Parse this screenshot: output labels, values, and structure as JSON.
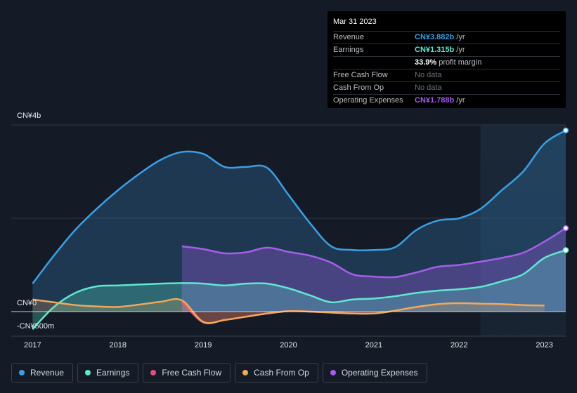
{
  "tooltip": {
    "date": "Mar 31 2023",
    "rows": [
      {
        "label": "Revenue",
        "value": "CN¥3.882b",
        "unit": "/yr",
        "color": "#3b9fe6"
      },
      {
        "label": "Earnings",
        "value": "CN¥1.315b",
        "unit": "/yr",
        "color": "#5ee8d0"
      },
      {
        "label": "",
        "value": "33.9%",
        "unit": "profit margin",
        "color": "#ffffff"
      },
      {
        "label": "Free Cash Flow",
        "value": "No data",
        "unit": "",
        "color": ""
      },
      {
        "label": "Cash From Op",
        "value": "No data",
        "unit": "",
        "color": ""
      },
      {
        "label": "Operating Expenses",
        "value": "CN¥1.788b",
        "unit": "/yr",
        "color": "#a55eea"
      }
    ]
  },
  "legend": [
    {
      "label": "Revenue",
      "color": "#3b9fe6"
    },
    {
      "label": "Earnings",
      "color": "#5ee8d0"
    },
    {
      "label": "Free Cash Flow",
      "color": "#e0507c"
    },
    {
      "label": "Cash From Op",
      "color": "#f0a85c"
    },
    {
      "label": "Operating Expenses",
      "color": "#a55eea"
    }
  ],
  "chart_data": {
    "type": "area",
    "title": "",
    "xlabel": "",
    "ylabel": "",
    "y_tick_labels": [
      "CN¥4b",
      "CN¥0",
      "-CN¥500m"
    ],
    "x_tick_labels": [
      "2017",
      "2018",
      "2019",
      "2020",
      "2021",
      "2022",
      "2023"
    ],
    "ylim": [
      -500,
      4000
    ],
    "xlim": [
      2016.75,
      2023.25
    ],
    "grid": true,
    "legend_position": "bottom",
    "forecast_shade_from": 2022.25,
    "series": [
      {
        "name": "Revenue",
        "color": "#3b9fe6",
        "x": [
          2017.0,
          2017.25,
          2017.5,
          2017.75,
          2018.0,
          2018.25,
          2018.5,
          2018.75,
          2019.0,
          2019.25,
          2019.5,
          2019.75,
          2020.0,
          2020.25,
          2020.5,
          2020.75,
          2021.0,
          2021.25,
          2021.5,
          2021.75,
          2022.0,
          2022.25,
          2022.5,
          2022.75,
          2023.0,
          2023.25
        ],
        "values": [
          600,
          1200,
          1750,
          2200,
          2600,
          2950,
          3250,
          3420,
          3380,
          3100,
          3100,
          3080,
          2500,
          1900,
          1400,
          1320,
          1320,
          1380,
          1750,
          1950,
          2000,
          2200,
          2600,
          3000,
          3600,
          3882
        ]
      },
      {
        "name": "Earnings",
        "color": "#5ee8d0",
        "x": [
          2017.0,
          2017.25,
          2017.5,
          2017.75,
          2018.0,
          2018.25,
          2018.5,
          2018.75,
          2019.0,
          2019.25,
          2019.5,
          2019.75,
          2020.0,
          2020.25,
          2020.5,
          2020.75,
          2021.0,
          2021.25,
          2021.5,
          2021.75,
          2022.0,
          2022.25,
          2022.5,
          2022.75,
          2023.0,
          2023.25
        ],
        "values": [
          -380,
          100,
          400,
          540,
          560,
          580,
          600,
          610,
          600,
          560,
          600,
          600,
          500,
          350,
          200,
          260,
          280,
          330,
          400,
          450,
          480,
          530,
          650,
          800,
          1150,
          1315
        ]
      },
      {
        "name": "Free Cash Flow",
        "color": "#e0507c",
        "x": [
          2018.75,
          2019.0,
          2019.25,
          2019.5,
          2019.75,
          2020.0,
          2020.25,
          2020.5,
          2020.75,
          2021.0
        ],
        "values": [
          220,
          -230,
          -180,
          -110,
          -40,
          10,
          0,
          -20,
          -40,
          -40
        ]
      },
      {
        "name": "Cash From Op",
        "color": "#f0a85c",
        "x": [
          2017.0,
          2017.25,
          2017.5,
          2017.75,
          2018.0,
          2018.25,
          2018.5,
          2018.75,
          2019.0,
          2019.25,
          2019.5,
          2019.75,
          2020.0,
          2020.25,
          2020.5,
          2020.75,
          2021.0,
          2021.25,
          2021.5,
          2021.75,
          2022.0,
          2022.25,
          2022.5,
          2022.75,
          2023.0
        ],
        "values": [
          260,
          200,
          140,
          110,
          100,
          150,
          210,
          240,
          -220,
          -180,
          -110,
          -40,
          10,
          0,
          -20,
          -40,
          -40,
          20,
          100,
          160,
          180,
          170,
          160,
          140,
          130
        ]
      },
      {
        "name": "Operating Expenses",
        "color": "#a55eea",
        "x": [
          2018.75,
          2019.0,
          2019.25,
          2019.5,
          2019.75,
          2020.0,
          2020.25,
          2020.5,
          2020.75,
          2021.0,
          2021.25,
          2021.5,
          2021.75,
          2022.0,
          2022.25,
          2022.5,
          2022.75,
          2023.0,
          2023.25
        ],
        "values": [
          1400,
          1340,
          1250,
          1270,
          1370,
          1280,
          1200,
          1050,
          800,
          750,
          740,
          840,
          960,
          1000,
          1070,
          1150,
          1260,
          1500,
          1788
        ]
      }
    ]
  }
}
